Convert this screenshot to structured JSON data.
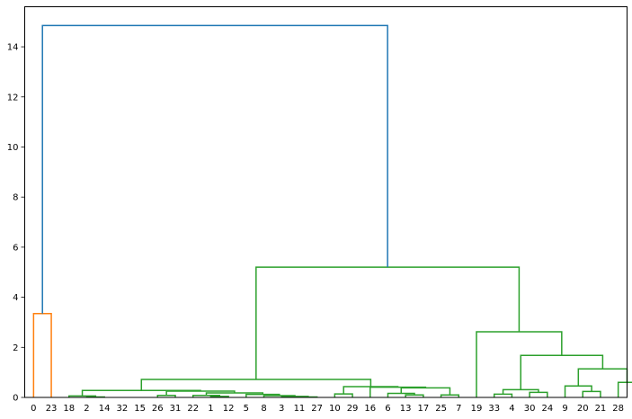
{
  "chart_data": {
    "type": "dendrogram",
    "title": "",
    "xlabel": "",
    "ylabel": "",
    "ylim": [
      0,
      15.6
    ],
    "yticks": [
      0,
      2,
      4,
      6,
      8,
      10,
      12,
      14
    ],
    "leaf_labels": [
      "0",
      "23",
      "18",
      "2",
      "14",
      "32",
      "15",
      "26",
      "31",
      "22",
      "1",
      "12",
      "5",
      "8",
      "3",
      "11",
      "27",
      "10",
      "29",
      "16",
      "6",
      "13",
      "17",
      "25",
      "7",
      "19",
      "33",
      "4",
      "30",
      "24",
      "9",
      "20",
      "21",
      "28"
    ],
    "links": [
      {
        "cluster": "orange",
        "color": "#ff7f0e",
        "x": [
          5,
          5,
          15,
          15
        ],
        "y": [
          0,
          3.35,
          3.35,
          0
        ]
      },
      {
        "cluster": "green",
        "color": "#2ca02c",
        "x": [
          35,
          35,
          45,
          45
        ],
        "y": [
          0,
          0.02,
          0.02,
          0
        ]
      },
      {
        "cluster": "green",
        "color": "#2ca02c",
        "x": [
          25,
          25,
          40,
          40
        ],
        "y": [
          0,
          0.06,
          0.06,
          0.02
        ]
      },
      {
        "cluster": "green",
        "color": "#2ca02c",
        "x": [
          75,
          75,
          85,
          85
        ],
        "y": [
          0,
          0.08,
          0.08,
          0
        ]
      },
      {
        "cluster": "green",
        "color": "#2ca02c",
        "x": [
          105,
          105,
          115,
          115
        ],
        "y": [
          0,
          0.04,
          0.04,
          0
        ]
      },
      {
        "cluster": "green",
        "color": "#2ca02c",
        "x": [
          95,
          95,
          110,
          110
        ],
        "y": [
          0,
          0.08,
          0.08,
          0.04
        ]
      },
      {
        "cluster": "green",
        "color": "#2ca02c",
        "x": [
          155,
          155,
          165,
          165
        ],
        "y": [
          0,
          0.02,
          0.02,
          0
        ]
      },
      {
        "cluster": "green",
        "color": "#2ca02c",
        "x": [
          145,
          145,
          160,
          160
        ],
        "y": [
          0,
          0.04,
          0.04,
          0.02
        ]
      },
      {
        "cluster": "green",
        "color": "#2ca02c",
        "x": [
          135,
          135,
          152.5,
          152.5
        ],
        "y": [
          0,
          0.07,
          0.07,
          0.04
        ]
      },
      {
        "cluster": "green",
        "color": "#2ca02c",
        "x": [
          125,
          125,
          143.75,
          143.75
        ],
        "y": [
          0,
          0.12,
          0.12,
          0.07
        ]
      },
      {
        "cluster": "green",
        "color": "#2ca02c",
        "x": [
          102.5,
          102.5,
          134.375,
          134.375
        ],
        "y": [
          0.08,
          0.18,
          0.18,
          0.12
        ]
      },
      {
        "cluster": "green",
        "color": "#2ca02c",
        "x": [
          80,
          80,
          118.4375,
          118.4375
        ],
        "y": [
          0.08,
          0.25,
          0.25,
          0.18
        ]
      },
      {
        "cluster": "green",
        "color": "#2ca02c",
        "x": [
          32.5,
          32.5,
          99.21875,
          99.21875
        ],
        "y": [
          0.06,
          0.28,
          0.28,
          0.25
        ]
      },
      {
        "cluster": "green",
        "color": "#2ca02c",
        "x": [
          175,
          175,
          185,
          185
        ],
        "y": [
          0,
          0.14,
          0.14,
          0
        ]
      },
      {
        "cluster": "green",
        "color": "#2ca02c",
        "x": [
          215,
          215,
          225,
          225
        ],
        "y": [
          0,
          0.1,
          0.1,
          0
        ]
      },
      {
        "cluster": "green",
        "color": "#2ca02c",
        "x": [
          205,
          205,
          220,
          220
        ],
        "y": [
          0,
          0.16,
          0.16,
          0.1
        ]
      },
      {
        "cluster": "green",
        "color": "#2ca02c",
        "x": [
          235,
          235,
          245,
          245
        ],
        "y": [
          0,
          0.1,
          0.1,
          0
        ]
      },
      {
        "cluster": "green",
        "color": "#2ca02c",
        "x": [
          212.5,
          212.5,
          240,
          240
        ],
        "y": [
          0.16,
          0.38,
          0.38,
          0.1
        ]
      },
      {
        "cluster": "green",
        "color": "#2ca02c",
        "x": [
          195,
          195,
          226.25,
          226.25
        ],
        "y": [
          0,
          0.41,
          0.41,
          0.38
        ]
      },
      {
        "cluster": "green",
        "color": "#2ca02c",
        "x": [
          180,
          180,
          210.625,
          210.625
        ],
        "y": [
          0.14,
          0.43,
          0.43,
          0.41
        ]
      },
      {
        "cluster": "green",
        "color": "#2ca02c",
        "x": [
          65.859375,
          65.859375,
          195.3125,
          195.3125
        ],
        "y": [
          0.28,
          0.72,
          0.72,
          0.43
        ]
      },
      {
        "cluster": "green",
        "color": "#2ca02c",
        "x": [
          265,
          265,
          275,
          275
        ],
        "y": [
          0,
          0.13,
          0.13,
          0
        ]
      },
      {
        "cluster": "green",
        "color": "#2ca02c",
        "x": [
          285,
          285,
          295,
          295
        ],
        "y": [
          0,
          0.2,
          0.2,
          0
        ]
      },
      {
        "cluster": "green",
        "color": "#2ca02c",
        "x": [
          270,
          270,
          290,
          290
        ],
        "y": [
          0.13,
          0.31,
          0.31,
          0.2
        ]
      },
      {
        "cluster": "green",
        "color": "#2ca02c",
        "x": [
          315,
          315,
          325,
          325
        ],
        "y": [
          0,
          0.24,
          0.24,
          0
        ]
      },
      {
        "cluster": "green",
        "color": "#2ca02c",
        "x": [
          305,
          305,
          320,
          320
        ],
        "y": [
          0,
          0.46,
          0.46,
          0.24
        ]
      },
      {
        "cluster": "green",
        "color": "#2ca02c",
        "x": [
          335,
          335,
          345,
          345
        ],
        "y": [
          0,
          0.6,
          0.6,
          0
        ]
      },
      {
        "cluster": "green",
        "color": "#2ca02c",
        "x": [
          312.5,
          312.5,
          340,
          340
        ],
        "y": [
          0.46,
          1.14,
          1.14,
          0.6
        ]
      },
      {
        "cluster": "green",
        "color": "#2ca02c",
        "x": [
          280,
          280,
          326.25,
          326.25
        ],
        "y": [
          0.31,
          1.68,
          1.68,
          1.14
        ]
      },
      {
        "cluster": "green",
        "color": "#2ca02c",
        "x": [
          255,
          255,
          303.125,
          303.125
        ],
        "y": [
          0,
          2.62,
          2.62,
          1.68
        ]
      },
      {
        "cluster": "green",
        "color": "#2ca02c",
        "x": [
          130.5859375,
          130.5859375,
          279.0625,
          279.0625
        ],
        "y": [
          0.72,
          5.2,
          5.2,
          2.62
        ]
      },
      {
        "cluster": "root",
        "color": "#1f77b4",
        "x": [
          10,
          10,
          204.82421875,
          204.82421875
        ],
        "y": [
          3.35,
          14.85,
          14.85,
          5.2
        ]
      }
    ]
  }
}
